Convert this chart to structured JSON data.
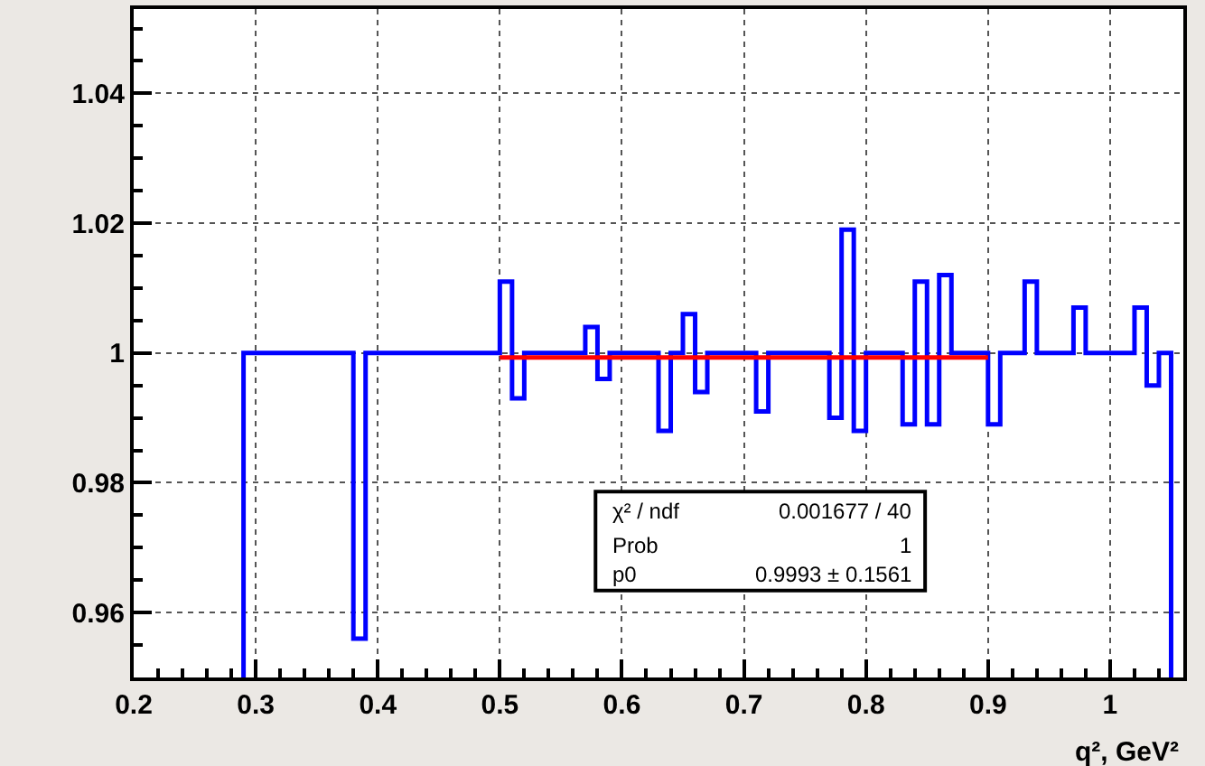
{
  "chart_data": {
    "type": "histogram",
    "xlabel": "q², GeV²",
    "bins": [
      0.29,
      0.3,
      0.31,
      0.32,
      0.33,
      0.34,
      0.35,
      0.36,
      0.37,
      0.38,
      0.39,
      0.4,
      0.41,
      0.42,
      0.43,
      0.44,
      0.45,
      0.46,
      0.47,
      0.48,
      0.49,
      0.5,
      0.51,
      0.52,
      0.53,
      0.54,
      0.55,
      0.56,
      0.57,
      0.58,
      0.59,
      0.6,
      0.61,
      0.62,
      0.63,
      0.64,
      0.65,
      0.66,
      0.67,
      0.68,
      0.69,
      0.7,
      0.71,
      0.72,
      0.73,
      0.74,
      0.75,
      0.76,
      0.77,
      0.78,
      0.79,
      0.8,
      0.81,
      0.82,
      0.83,
      0.84,
      0.85,
      0.86,
      0.87,
      0.88,
      0.89,
      0.9,
      0.91,
      0.92,
      0.93,
      0.94,
      0.95,
      0.96,
      0.97,
      0.98,
      0.99,
      1.0,
      1.01,
      1.02,
      1.03,
      1.04,
      1.05
    ],
    "values": [
      1,
      1,
      1,
      1,
      1,
      1,
      1,
      1,
      1,
      0.956,
      1,
      1,
      1,
      1,
      1,
      1,
      1,
      1,
      1,
      1,
      1,
      1.011,
      0.993,
      1,
      1,
      1,
      1,
      1,
      1.004,
      0.996,
      1,
      1,
      1,
      1,
      0.988,
      1,
      1.006,
      0.994,
      1,
      1,
      1,
      1,
      0.991,
      1,
      1,
      1,
      1,
      1,
      0.99,
      1.019,
      0.988,
      1,
      1,
      1,
      0.989,
      1.011,
      0.989,
      1.012,
      1,
      1,
      1,
      0.989,
      1,
      1,
      1.011,
      1,
      1,
      1,
      1.007,
      1,
      1,
      1,
      1,
      1.007,
      0.995,
      1
    ],
    "color": "#0000ff",
    "series": [
      {
        "type": "line",
        "x": [
          0.5,
          0.9
        ],
        "values": [
          0.9993,
          0.9993
        ],
        "color": "#ff0000"
      }
    ],
    "xlim": [
      0.2,
      1.06
    ],
    "xticks": [
      0.2,
      0.3,
      0.4,
      0.5,
      0.6,
      0.7,
      0.8,
      0.9,
      1
    ],
    "ylim": [
      0.95,
      1.053
    ],
    "yticks": [
      0.96,
      0.98,
      1,
      1.02,
      1.04
    ],
    "grid": true,
    "annotations": [
      "χ² / ndf",
      "0.001677 / 40",
      "Prob",
      "1",
      "p0",
      "0.9993 ± 0.1561"
    ]
  }
}
